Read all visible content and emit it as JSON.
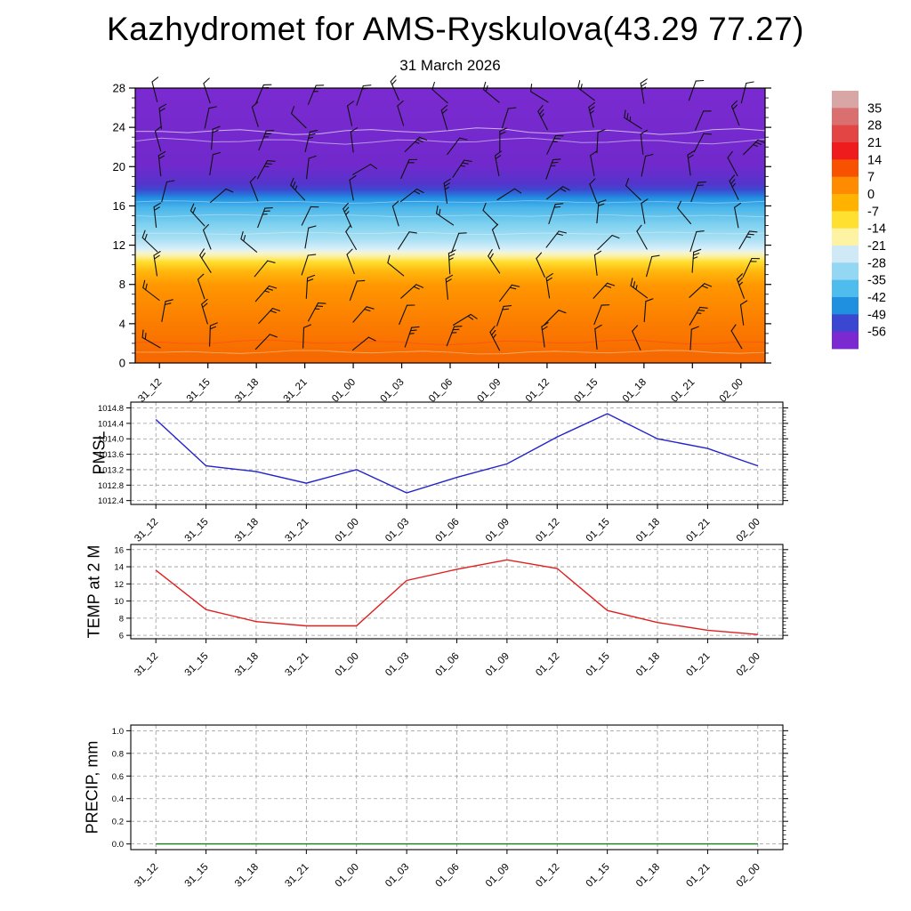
{
  "title": "Kazhydromet for AMS-Ryskulova(43.29 77.27)",
  "subtitle": "31 March 2026",
  "time_labels": [
    "31_12",
    "31_15",
    "31_18",
    "31_21",
    "01_00",
    "01_03",
    "01_06",
    "01_09",
    "01_12",
    "01_15",
    "01_18",
    "01_21",
    "02_00"
  ],
  "chart_data": [
    {
      "type": "heatmap",
      "name": "temperature-height-cross-section-with-wind-barbs",
      "ylabel": "",
      "ylim": [
        0,
        28
      ],
      "yticks": [
        0,
        4,
        8,
        12,
        16,
        20,
        24,
        28
      ],
      "x_categories": [
        "31_12",
        "31_15",
        "31_18",
        "31_21",
        "01_00",
        "01_03",
        "01_06",
        "01_09",
        "01_12",
        "01_15",
        "01_18",
        "01_21",
        "02_00"
      ],
      "colorbar_ticks": [
        35,
        28,
        21,
        14,
        7,
        0,
        -7,
        -14,
        -21,
        -28,
        -35,
        -42,
        -49,
        -56
      ],
      "colorbar_colors": [
        "#d9a6a6",
        "#da6f6f",
        "#e34444",
        "#ee1c1c",
        "#f85200",
        "#ff8c00",
        "#ffb300",
        "#ffdf30",
        "#fdf3a2",
        "#cfeaf6",
        "#93d7f2",
        "#4fbcee",
        "#1f8fe0",
        "#3b47d0",
        "#7a2ad0"
      ],
      "gradient_stops": [
        [
          0.0,
          "#7a2ad0"
        ],
        [
          0.28,
          "#7129cc"
        ],
        [
          0.345,
          "#5633cc"
        ],
        [
          0.368,
          "#3f46d0"
        ],
        [
          0.385,
          "#2e6ad8"
        ],
        [
          0.4,
          "#2090e2"
        ],
        [
          0.435,
          "#4ab6ea"
        ],
        [
          0.5,
          "#82d2f0"
        ],
        [
          0.555,
          "#aee2f4"
        ],
        [
          0.585,
          "#d8effa"
        ],
        [
          0.598,
          "#f2f5d8"
        ],
        [
          0.612,
          "#fdf0a0"
        ],
        [
          0.632,
          "#ffdf30"
        ],
        [
          0.665,
          "#ffb80e"
        ],
        [
          0.72,
          "#ff9600"
        ],
        [
          0.86,
          "#fb7c00"
        ],
        [
          1.0,
          "#f56600"
        ]
      ],
      "wind_barbs": {
        "columns": 13,
        "rows": 11
      }
    },
    {
      "type": "line",
      "name": "pmsl",
      "ylabel": "PMSL",
      "color": "#2222cc",
      "yticks": [
        1012.4,
        1012.8,
        1013.2,
        1013.6,
        1014.0,
        1014.4,
        1014.8
      ],
      "ylim": [
        1012.3,
        1014.95
      ],
      "tick_decimals": 1,
      "values": [
        1014.5,
        1013.3,
        1013.15,
        1012.85,
        1013.2,
        1012.6,
        1013.0,
        1013.35,
        1014.05,
        1014.65,
        1014.0,
        1013.75,
        1013.3
      ]
    },
    {
      "type": "line",
      "name": "temp-at-2m",
      "ylabel": "TEMP at 2 M",
      "color": "#e02020",
      "yticks": [
        6,
        8,
        10,
        12,
        14,
        16
      ],
      "ylim": [
        5.6,
        16.6
      ],
      "tick_decimals": 0,
      "values": [
        13.6,
        9.0,
        7.6,
        7.1,
        7.1,
        12.4,
        13.7,
        14.8,
        13.8,
        8.9,
        7.5,
        6.6,
        6.1
      ]
    },
    {
      "type": "line",
      "name": "precip",
      "ylabel": "PRECIP, mm",
      "color": "#1a7a1a",
      "yticks": [
        0.0,
        0.2,
        0.4,
        0.6,
        0.8,
        1.0
      ],
      "ylim": [
        -0.05,
        1.05
      ],
      "tick_decimals": 1,
      "values": [
        0,
        0,
        0,
        0,
        0,
        0,
        0,
        0,
        0,
        0,
        0,
        0,
        0
      ]
    }
  ]
}
